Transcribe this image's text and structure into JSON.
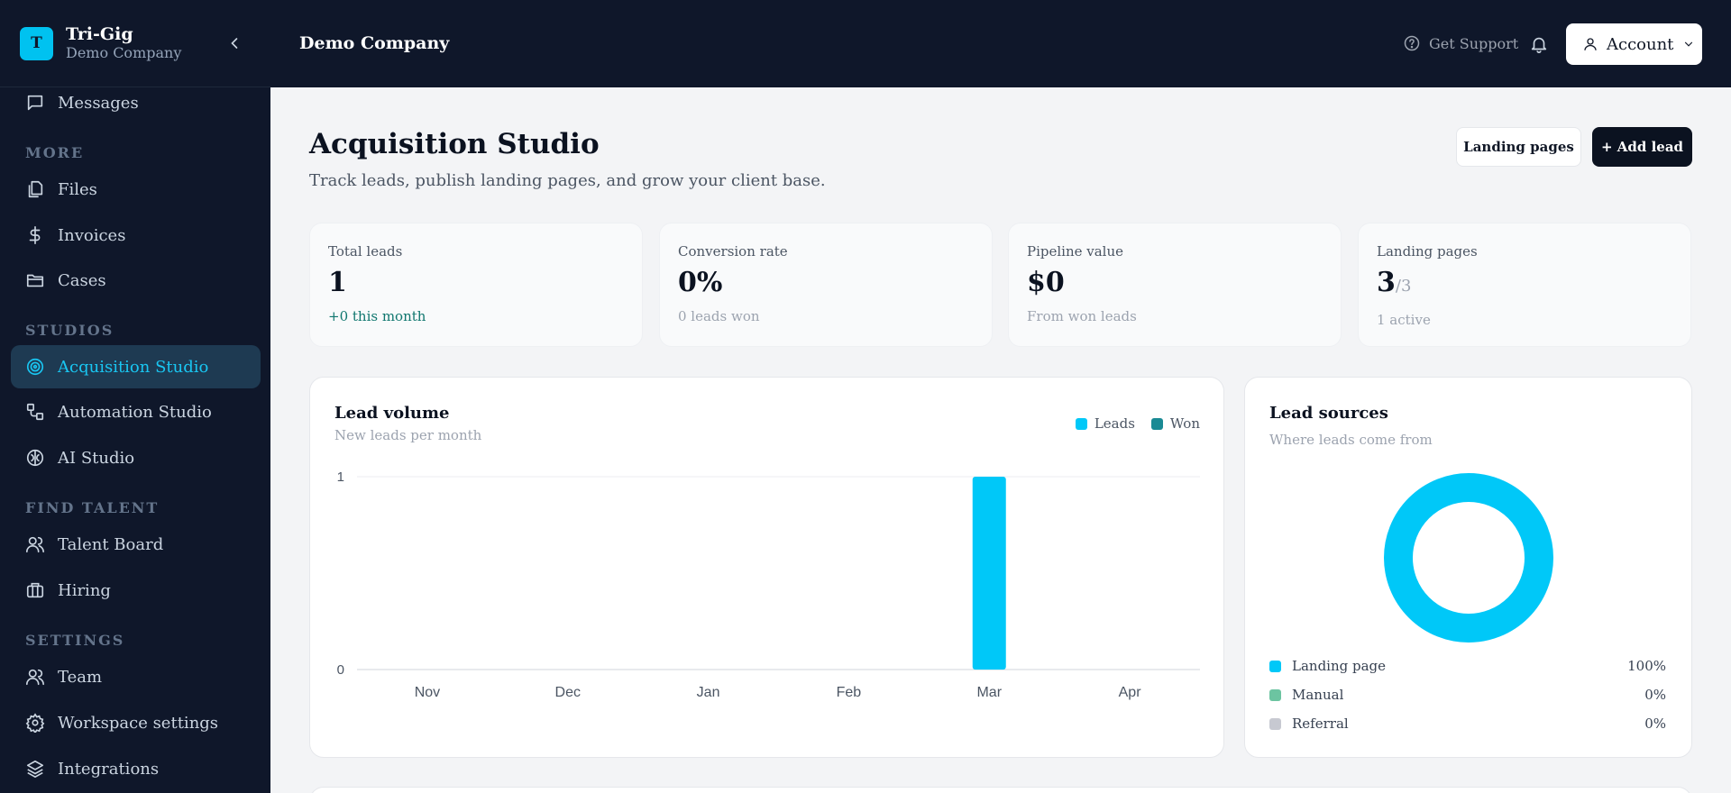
{
  "brand": {
    "logo_letter": "T",
    "name": "Tri-Gig",
    "company": "Demo Company"
  },
  "sidebar": {
    "items": {
      "messages": "Messages",
      "files": "Files",
      "invoices": "Invoices",
      "cases": "Cases",
      "acquisition": "Acquisition Studio",
      "automation": "Automation Studio",
      "ai": "AI Studio",
      "talent": "Talent Board",
      "hiring": "Hiring",
      "team": "Team",
      "workspace": "Workspace settings",
      "integrations": "Integrations"
    },
    "sections": {
      "more": "MORE",
      "studios": "STUDIOS",
      "find_talent": "FIND TALENT",
      "settings": "SETTINGS"
    },
    "active_item": "Acquisition Studio"
  },
  "header": {
    "title": "Demo Company",
    "support": "Get Support",
    "account": "Account"
  },
  "page": {
    "title": "Acquisition Studio",
    "subtitle": "Track leads, publish landing pages, and grow your client base.",
    "btn_landing": "Landing pages",
    "btn_add": "+ Add lead"
  },
  "stats": {
    "total_leads": {
      "label": "Total leads",
      "value": "1",
      "foot": "+0 this month"
    },
    "conversion": {
      "label": "Conversion rate",
      "value": "0%",
      "foot": "0 leads won"
    },
    "pipeline": {
      "label": "Pipeline value",
      "value": "$0",
      "foot": "From won leads"
    },
    "landing": {
      "label": "Landing pages",
      "value": "3",
      "denominator": "/3",
      "foot": "1 active"
    }
  },
  "lead_volume": {
    "title": "Lead volume",
    "subtitle": "New leads per month",
    "legend": {
      "leads": "Leads",
      "won": "Won"
    }
  },
  "lead_sources": {
    "title": "Lead sources",
    "subtitle": "Where leads come from",
    "rows": [
      {
        "name": "Landing page",
        "pct": "100%"
      },
      {
        "name": "Manual",
        "pct": "0%"
      },
      {
        "name": "Referral",
        "pct": "0%"
      }
    ]
  },
  "colors": {
    "leads": "#00c8f8",
    "won": "#1a8a94",
    "manual": "#6cc4a1",
    "referral": "#c7c9d1",
    "sidebar_bg": "#0f172a",
    "active": "#19c6f2"
  },
  "chart_data": [
    {
      "type": "bar",
      "categories": [
        "Nov",
        "Dec",
        "Jan",
        "Feb",
        "Mar",
        "Apr"
      ],
      "series": [
        {
          "name": "Leads",
          "values": [
            0,
            0,
            0,
            0,
            1,
            0
          ]
        },
        {
          "name": "Won",
          "values": [
            0,
            0,
            0,
            0,
            0,
            0
          ]
        }
      ],
      "ylim": [
        0,
        1
      ],
      "yticks": [
        "0",
        "1"
      ],
      "grid": true,
      "legend": "top-right"
    },
    {
      "type": "pie",
      "categories": [
        "Landing page",
        "Manual",
        "Referral"
      ],
      "values": [
        100,
        0,
        0
      ]
    }
  ]
}
